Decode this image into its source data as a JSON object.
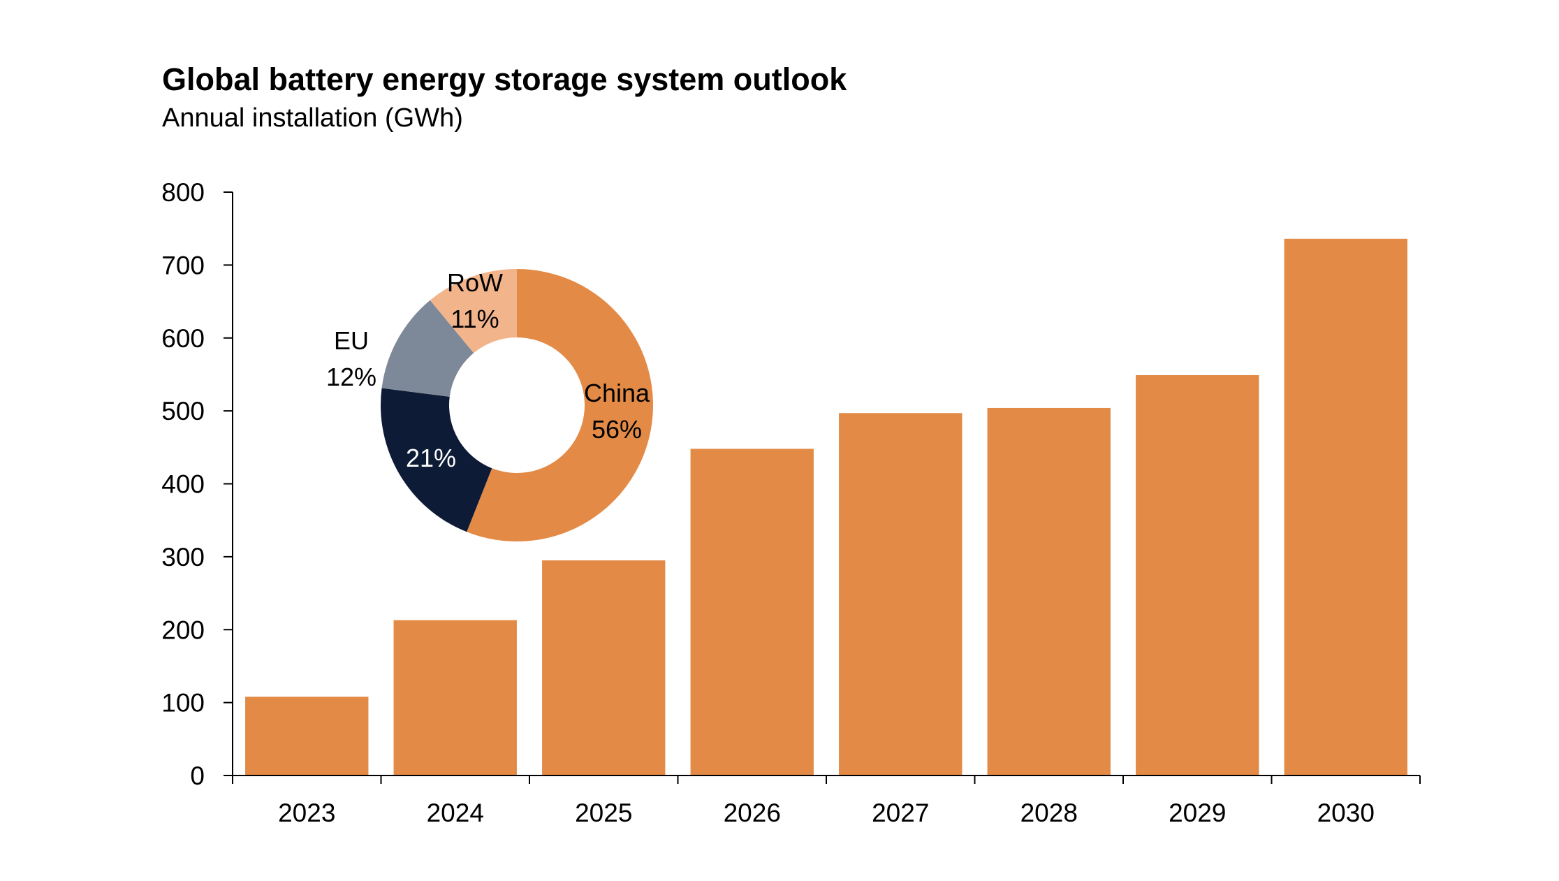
{
  "chart_data": [
    {
      "type": "bar",
      "title": "Global battery energy storage system outlook",
      "subtitle": "Annual installation (GWh)",
      "categories": [
        "2023",
        "2024",
        "2025",
        "2026",
        "2027",
        "2028",
        "2029",
        "2030"
      ],
      "values": [
        108,
        213,
        295,
        448,
        497,
        504,
        549,
        736
      ],
      "ylim": [
        0,
        800
      ],
      "yticks": [
        0,
        100,
        200,
        300,
        400,
        500,
        600,
        700,
        800
      ],
      "bar_color": "#E38A46",
      "grid": false,
      "legend": false
    },
    {
      "type": "pie",
      "donut": true,
      "labels": [
        "China",
        "",
        "EU",
        "RoW"
      ],
      "values": [
        56,
        21,
        12,
        11
      ],
      "value_labels": [
        "56%",
        "21%",
        "12%",
        "11%"
      ],
      "colors": [
        "#E38A46",
        "#0D1B36",
        "#7D8898",
        "#F2B48B"
      ],
      "label_colors": [
        "#000000",
        "#ffffff",
        "#000000",
        "#000000"
      ]
    }
  ]
}
